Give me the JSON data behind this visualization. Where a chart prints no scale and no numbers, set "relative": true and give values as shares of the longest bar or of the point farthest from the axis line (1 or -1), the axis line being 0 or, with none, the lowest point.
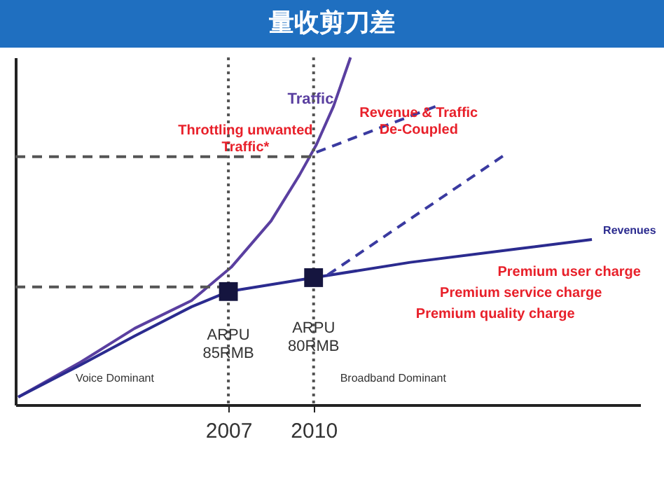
{
  "chart_data": {
    "type": "line",
    "title": "量收剪刀差",
    "relative": true,
    "xlim": [
      1999.5,
      2021.5
    ],
    "xticks": [
      2007,
      2010
    ],
    "tick_labels": "x",
    "series": [
      {
        "name": "Traffic",
        "color": "#5a3fa0",
        "x": [
          1999.6,
          2001.8,
          2003.7,
          2005.7,
          2007.1,
          2008.5,
          2009.5,
          2010.1,
          2010.7,
          2011.3
        ],
        "values": [
          0.022,
          0.123,
          0.22,
          0.3,
          0.396,
          0.529,
          0.661,
          0.749,
          0.859,
          1
        ]
      },
      {
        "name": "Revenues",
        "color": "#2b2b8f",
        "x": [
          1999.6,
          2001.8,
          2003.7,
          2005.7,
          2007,
          2010,
          2013.4,
          2017.2,
          2019.8
        ],
        "values": [
          0.022,
          0.115,
          0.198,
          0.282,
          0.326,
          0.366,
          0.41,
          0.449,
          0.476
        ]
      },
      {
        "type": "line",
        "line_style": "dashed",
        "color": "#3a3aa0",
        "x": [
          2010.1,
          2014.3
        ],
        "values": [
          0.727,
          0.859
        ]
      },
      {
        "type": "line",
        "line_style": "dashed",
        "color": "#3a3aa0",
        "x": [
          2010.5,
          2016.7
        ],
        "values": [
          0.374,
          0.718
        ]
      },
      {
        "type": "line",
        "line_style": "dashed",
        "color": "#555555",
        "x": [
          1999.5,
          2010
        ],
        "values": [
          0.714,
          0.714
        ]
      },
      {
        "type": "line",
        "line_style": "dashed",
        "color": "#555555",
        "x": [
          1999.5,
          2007
        ],
        "values": [
          0.339,
          0.339
        ]
      },
      {
        "type": "scatter",
        "marker": "square",
        "color": "#15153f",
        "x": [
          2007,
          2010
        ],
        "values": [
          0.326,
          0.366
        ]
      }
    ],
    "ref_lines": [
      {
        "axis": "x",
        "value": 2007,
        "label": null,
        "color": "#555555",
        "line_style": "dotted"
      },
      {
        "axis": "x",
        "value": 2010,
        "label": null,
        "color": "#555555",
        "line_style": "dotted"
      }
    ],
    "annotations": [
      "Throttling unwanted\nTraffic*",
      "Revenue & Traffic\nDe-Coupled",
      "Premium user charge",
      "Premium service charge",
      "Premium quality charge",
      "ARPU\n85RMB",
      "ARPU\n80RMB",
      "Voice Dominant",
      "Broadband Dominant"
    ]
  }
}
